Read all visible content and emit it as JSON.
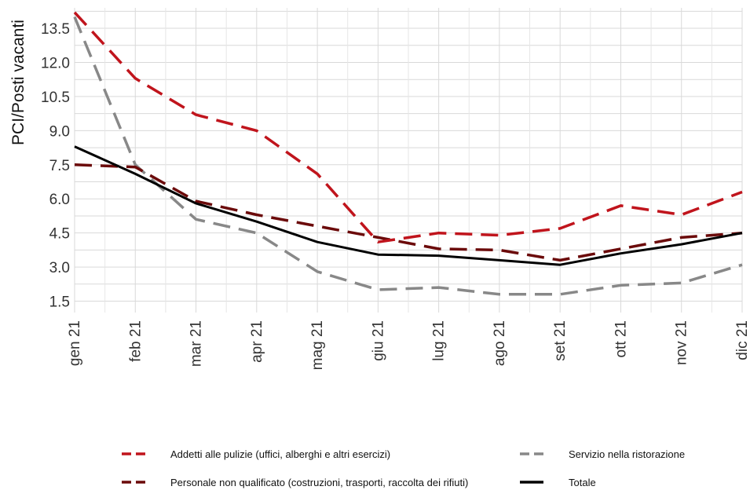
{
  "chart_data": {
    "type": "line",
    "ylabel": "PCI/Posti vacanti",
    "xlabel": "",
    "categories": [
      "gen 21",
      "feb 21",
      "mar 21",
      "apr 21",
      "mag 21",
      "giu 21",
      "lug 21",
      "ago 21",
      "set 21",
      "ott 21",
      "nov 21",
      "dic 21"
    ],
    "y_ticks": [
      1.5,
      3.0,
      4.5,
      6.0,
      7.5,
      9.0,
      10.5,
      12.0,
      13.5
    ],
    "y_tick_labels": [
      "1.5",
      "3.0",
      "4.5",
      "6.0",
      "7.5",
      "9.0",
      "10.5",
      "12.0",
      "13.5"
    ],
    "ylim": [
      1.0,
      14.4
    ],
    "grid": true,
    "legend_position": "bottom",
    "series": [
      {
        "name": "Addetti alle pulizie (uffici, alberghi e altri esercizi)",
        "color": "#c0141c",
        "dash": "dashed",
        "values": [
          14.2,
          11.3,
          9.7,
          9.0,
          7.1,
          4.1,
          4.5,
          4.4,
          4.7,
          5.7,
          5.3,
          6.3
        ]
      },
      {
        "name": "Personale non qualificato (costruzioni, trasporti, raccolta dei rifiuti)",
        "color": "#6b0a0a",
        "dash": "dashed",
        "values": [
          7.5,
          7.4,
          5.9,
          5.3,
          4.8,
          4.3,
          3.8,
          3.75,
          3.3,
          3.8,
          4.3,
          4.5
        ]
      },
      {
        "name": "Servizio nella ristorazione",
        "color": "#888888",
        "dash": "dashed",
        "values": [
          14.0,
          7.5,
          5.1,
          4.5,
          2.8,
          2.0,
          2.1,
          1.8,
          1.8,
          2.2,
          2.3,
          3.1
        ]
      },
      {
        "name": "Totale",
        "color": "#000000",
        "dash": "solid",
        "values": [
          8.3,
          7.1,
          5.8,
          5.0,
          4.1,
          3.55,
          3.5,
          3.3,
          3.1,
          3.6,
          4.0,
          4.5
        ]
      }
    ]
  }
}
